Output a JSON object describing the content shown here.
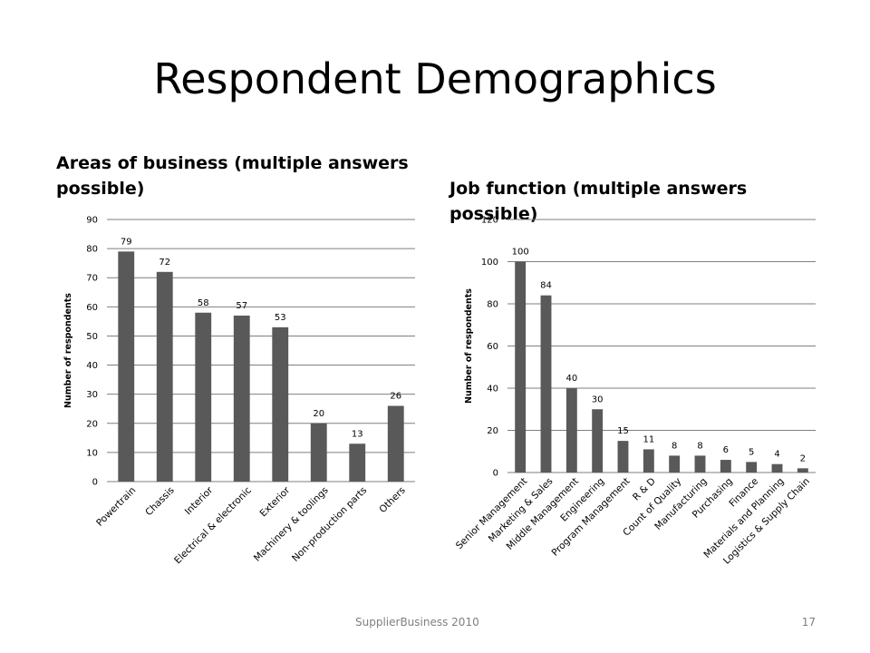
{
  "slide": {
    "title": "Respondent Demographics",
    "footer": "SupplierBusiness 2010",
    "page_number": "17"
  },
  "colors": {
    "bar": "#595959",
    "grid": "#7f7f7f",
    "text": "#000000",
    "footer": "#7f7f7f"
  },
  "chart_data": [
    {
      "type": "bar",
      "title": "Areas of business (multiple answers possible)",
      "ylabel": "Number of respondents",
      "xlabel": "",
      "categories": [
        "Powertrain",
        "Chassis",
        "Interior",
        "Electrical & electronic",
        "Exterior",
        "Machinery & toolings",
        "Non-production parts",
        "Others"
      ],
      "values": [
        79,
        72,
        58,
        57,
        53,
        20,
        13,
        26
      ],
      "ylim": [
        0,
        90
      ],
      "yticks": [
        0,
        10,
        20,
        30,
        40,
        50,
        60,
        70,
        80,
        90
      ],
      "grid": true,
      "data_labels": true
    },
    {
      "type": "bar",
      "title": "Job function (multiple answers possible)",
      "ylabel": "Number of respondents",
      "xlabel": "",
      "categories": [
        "Senior Management",
        "Marketing & Sales",
        "Middle Management",
        "Engineering",
        "Program Management",
        "R & D",
        "Count of Quality",
        "Manufacturing",
        "Purchasing",
        "Finance",
        "Materials and Planning",
        "Logistics & Supply Chain"
      ],
      "values": [
        100,
        84,
        40,
        30,
        15,
        11,
        8,
        8,
        6,
        5,
        4,
        2
      ],
      "ylim": [
        0,
        120
      ],
      "yticks": [
        0,
        20,
        40,
        60,
        80,
        100,
        120
      ],
      "grid": true,
      "data_labels": true
    }
  ]
}
